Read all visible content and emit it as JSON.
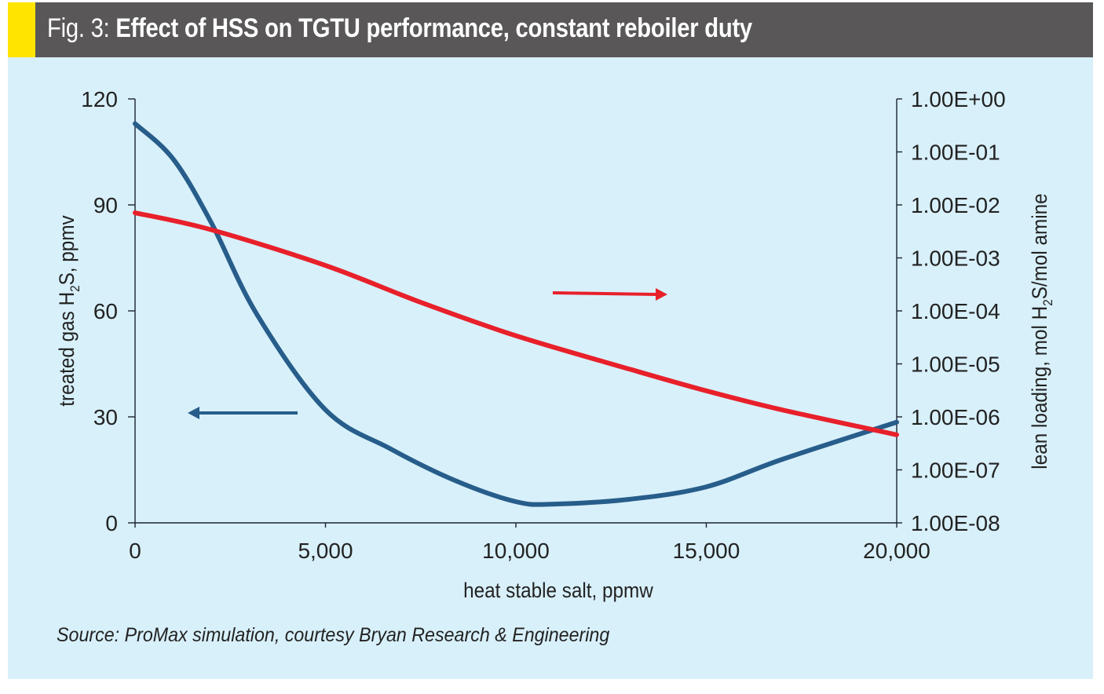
{
  "header": {
    "figure_prefix": "Fig. 3: ",
    "title": "Effect of HSS on TGTU performance, constant reboiler duty",
    "accent_color": "#ffe400",
    "bar_color": "#595758"
  },
  "source": "Source: ProMax simulation, courtesy Bryan Research & Engineering",
  "chart_data": {
    "type": "line",
    "title": "Effect of HSS on TGTU performance, constant reboiler duty",
    "xlabel": "heat stable salt, ppmw",
    "ylabel_left": "treated gas H2S, ppmv",
    "ylabel_right": "lean loading, mol H2S/mol amine",
    "xlim": [
      0,
      20000
    ],
    "ylim_left": [
      0,
      120
    ],
    "ylim_right": [
      1e-08,
      1
    ],
    "right_axis_scale": "log",
    "x_ticks": [
      0,
      5000,
      10000,
      15000,
      20000
    ],
    "x_tick_labels": [
      "0",
      "5,000",
      "10,000",
      "15,000",
      "20,000"
    ],
    "left_ticks": [
      0,
      30,
      60,
      90,
      120
    ],
    "left_tick_labels": [
      "0",
      "30",
      "60",
      "90",
      "120"
    ],
    "right_ticks": [
      1,
      0.1,
      0.01,
      0.001,
      0.0001,
      1e-05,
      1e-06,
      1e-07,
      1e-08
    ],
    "right_tick_labels": [
      "1.00E+00",
      "1.00E-01",
      "1.00E-02",
      "1.00E-03",
      "1.00E-04",
      "1.00E-05",
      "1.00E-06",
      "1.00E-07",
      "1.00E-08"
    ],
    "grid": false,
    "series": [
      {
        "name": "treated gas H2S",
        "axis": "left",
        "color": "#275d8a",
        "x": [
          0,
          1000,
          2000,
          3200,
          5000,
          6700,
          8400,
          10000,
          11000,
          13000,
          15000,
          17000,
          20000
        ],
        "y": [
          113,
          103,
          85,
          59,
          32,
          21,
          12,
          6,
          5.3,
          6.7,
          10.2,
          18,
          28.5
        ]
      },
      {
        "name": "lean loading",
        "axis": "right",
        "color": "#e8202a",
        "x": [
          0,
          2000,
          5000,
          7500,
          10000,
          13000,
          15000,
          17000,
          20000
        ],
        "y": [
          0.0071,
          0.0034,
          0.00072,
          0.000145,
          3.4e-05,
          7.9e-06,
          3.1e-06,
          1.35e-06,
          4.6e-07
        ]
      }
    ],
    "annotations": [
      {
        "type": "arrow",
        "direction": "left",
        "color": "#275d8a",
        "meaning": "blue curve reads on left axis"
      },
      {
        "type": "arrow",
        "direction": "right",
        "color": "#e8202a",
        "meaning": "red curve reads on right axis"
      }
    ]
  }
}
